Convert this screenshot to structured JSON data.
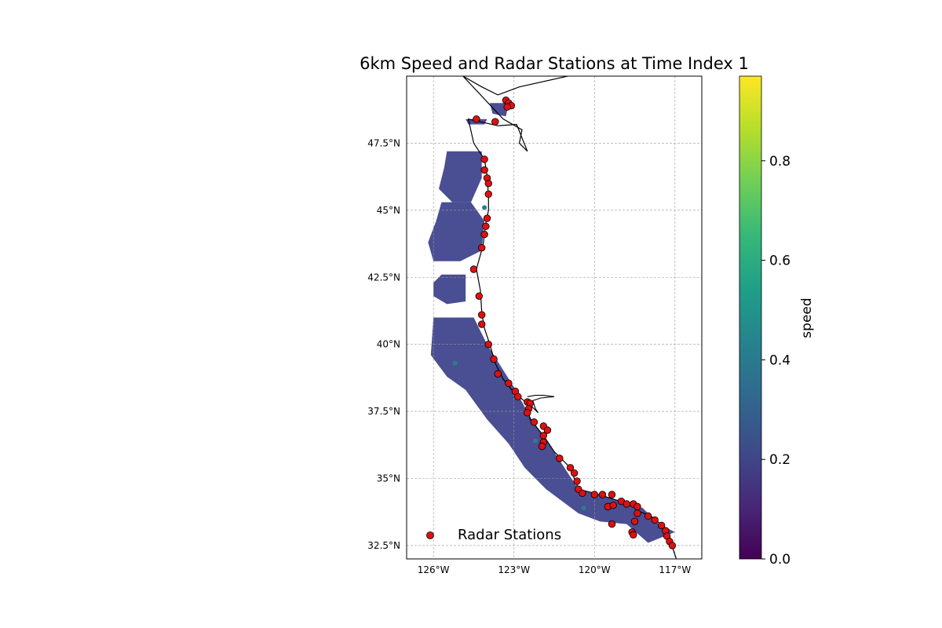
{
  "title": "6km Speed and Radar Stations at Time Index 1",
  "map": {
    "extent": {
      "lon": [
        -127.0,
        -116.0
      ],
      "lat": [
        32.0,
        50.0
      ]
    },
    "lat_ticks": [
      {
        "value": 32.5,
        "label": "32.5°N"
      },
      {
        "value": 35.0,
        "label": "35°N"
      },
      {
        "value": 37.5,
        "label": "37.5°N"
      },
      {
        "value": 40.0,
        "label": "40°N"
      },
      {
        "value": 42.5,
        "label": "42.5°N"
      },
      {
        "value": 45.0,
        "label": "45°N"
      },
      {
        "value": 47.5,
        "label": "47.5°N"
      }
    ],
    "lon_ticks": [
      {
        "value": -126.0,
        "label": "126°W"
      },
      {
        "value": -123.0,
        "label": "123°W"
      },
      {
        "value": -120.0,
        "label": "120°W"
      },
      {
        "value": -117.0,
        "label": "117°W"
      }
    ],
    "gridlines": true,
    "coastline_color": "#000000",
    "speed_field_color": "#3b3f8a",
    "speed_highlight_color": "#2a7d8e",
    "coastline": [
      [
        -121.0,
        50.0
      ],
      [
        -122.8,
        49.6
      ],
      [
        -123.6,
        49.3
      ],
      [
        -124.2,
        49.6
      ],
      [
        -124.9,
        50.0
      ],
      [
        -123.4,
        48.4
      ],
      [
        -122.7,
        48.0
      ],
      [
        -122.8,
        47.5
      ],
      [
        -122.5,
        47.2
      ],
      [
        -122.9,
        48.2
      ],
      [
        -123.6,
        48.15
      ],
      [
        -124.7,
        48.4
      ],
      [
        -124.5,
        47.5
      ],
      [
        -124.1,
        46.9
      ],
      [
        -124.0,
        46.3
      ],
      [
        -123.95,
        45.5
      ],
      [
        -123.95,
        45.0
      ],
      [
        -124.05,
        44.5
      ],
      [
        -124.15,
        43.7
      ],
      [
        -124.4,
        42.8
      ],
      [
        -124.25,
        42.0
      ],
      [
        -124.2,
        41.2
      ],
      [
        -124.1,
        40.6
      ],
      [
        -123.9,
        40.0
      ],
      [
        -123.7,
        39.3
      ],
      [
        -123.4,
        38.7
      ],
      [
        -123.0,
        38.2
      ],
      [
        -122.5,
        37.8
      ],
      [
        -122.4,
        37.2
      ],
      [
        -121.9,
        36.6
      ],
      [
        -121.5,
        36.0
      ],
      [
        -120.9,
        35.4
      ],
      [
        -120.6,
        34.6
      ],
      [
        -120.0,
        34.45
      ],
      [
        -119.2,
        34.2
      ],
      [
        -118.5,
        34.0
      ],
      [
        -118.4,
        33.8
      ],
      [
        -117.9,
        33.6
      ],
      [
        -117.3,
        33.1
      ],
      [
        -117.15,
        32.7
      ],
      [
        -117.1,
        32.45
      ],
      [
        -116.95,
        32.0
      ]
    ],
    "bay": [
      [
        -122.5,
        38.05
      ],
      [
        -122.2,
        38.1
      ],
      [
        -121.9,
        38.1
      ],
      [
        -121.5,
        38.05
      ],
      [
        -122.0,
        38.0
      ],
      [
        -122.3,
        37.9
      ],
      [
        -122.2,
        37.6
      ],
      [
        -122.1,
        37.45
      ],
      [
        -122.4,
        37.75
      ]
    ]
  },
  "speed_field": [
    [
      [
        -125.5,
        47.2
      ],
      [
        -124.2,
        47.2
      ],
      [
        -124.2,
        46.2
      ],
      [
        -124.6,
        45.3
      ],
      [
        -125.3,
        45.3
      ],
      [
        -125.8,
        45.8
      ],
      [
        -125.6,
        46.6
      ]
    ],
    [
      [
        -125.7,
        45.3
      ],
      [
        -124.6,
        45.3
      ],
      [
        -124.1,
        44.6
      ],
      [
        -124.2,
        43.5
      ],
      [
        -125.0,
        43.1
      ],
      [
        -126.0,
        43.1
      ],
      [
        -126.2,
        43.8
      ],
      [
        -125.9,
        44.6
      ]
    ],
    [
      [
        -125.7,
        42.6
      ],
      [
        -124.8,
        42.6
      ],
      [
        -124.8,
        41.6
      ],
      [
        -125.5,
        41.5
      ],
      [
        -126.0,
        41.8
      ],
      [
        -126.0,
        42.3
      ]
    ],
    [
      [
        -126.0,
        41.0
      ],
      [
        -124.5,
        41.0
      ],
      [
        -124.0,
        40.0
      ],
      [
        -123.0,
        38.4
      ],
      [
        -122.4,
        37.3
      ],
      [
        -121.7,
        36.3
      ],
      [
        -120.6,
        34.6
      ],
      [
        -119.2,
        34.2
      ],
      [
        -118.2,
        33.9
      ],
      [
        -117.6,
        33.3
      ],
      [
        -117.0,
        33.0
      ],
      [
        -118.0,
        32.6
      ],
      [
        -118.8,
        33.3
      ],
      [
        -119.8,
        33.4
      ],
      [
        -120.6,
        33.7
      ],
      [
        -121.8,
        34.6
      ],
      [
        -122.6,
        35.4
      ],
      [
        -123.2,
        36.3
      ],
      [
        -124.0,
        37.2
      ],
      [
        -124.8,
        38.3
      ],
      [
        -125.5,
        38.8
      ],
      [
        -126.1,
        39.6
      ]
    ],
    [
      [
        -123.9,
        49.0
      ],
      [
        -123.2,
        49.0
      ],
      [
        -123.3,
        48.5
      ],
      [
        -123.8,
        48.6
      ]
    ],
    [
      [
        -124.8,
        48.4
      ],
      [
        -124.0,
        48.4
      ],
      [
        -124.1,
        48.2
      ],
      [
        -124.7,
        48.2
      ]
    ]
  ],
  "stations": {
    "legend_label": "Radar Stations",
    "legend_location": "lower-left",
    "marker_color": "#dd1111",
    "points": [
      [
        -123.3,
        49.1
      ],
      [
        -123.2,
        49.0
      ],
      [
        -123.1,
        48.9
      ],
      [
        -123.25,
        48.85
      ],
      [
        -124.4,
        48.4
      ],
      [
        -123.7,
        48.3
      ],
      [
        -124.1,
        46.9
      ],
      [
        -124.1,
        46.5
      ],
      [
        -124.0,
        46.2
      ],
      [
        -123.95,
        46.0
      ],
      [
        -123.95,
        45.6
      ],
      [
        -124.0,
        44.7
      ],
      [
        -124.05,
        44.4
      ],
      [
        -124.1,
        44.1
      ],
      [
        -124.2,
        43.6
      ],
      [
        -124.5,
        42.8
      ],
      [
        -124.3,
        41.8
      ],
      [
        -124.2,
        41.1
      ],
      [
        -124.2,
        40.75
      ],
      [
        -123.95,
        40.0
      ],
      [
        -123.75,
        39.45
      ],
      [
        -123.6,
        38.9
      ],
      [
        -123.2,
        38.55
      ],
      [
        -122.95,
        38.25
      ],
      [
        -122.85,
        38.05
      ],
      [
        -122.5,
        37.85
      ],
      [
        -122.4,
        37.8
      ],
      [
        -122.45,
        37.6
      ],
      [
        -122.5,
        37.45
      ],
      [
        -122.25,
        37.1
      ],
      [
        -121.9,
        36.95
      ],
      [
        -121.75,
        36.8
      ],
      [
        -121.9,
        36.6
      ],
      [
        -121.9,
        36.35
      ],
      [
        -121.95,
        36.2
      ],
      [
        -121.3,
        35.75
      ],
      [
        -120.9,
        35.4
      ],
      [
        -120.75,
        35.2
      ],
      [
        -120.65,
        34.9
      ],
      [
        -120.6,
        34.6
      ],
      [
        -120.45,
        34.45
      ],
      [
        -120.0,
        34.4
      ],
      [
        -119.7,
        34.4
      ],
      [
        -119.35,
        34.4
      ],
      [
        -119.0,
        34.15
      ],
      [
        -118.8,
        34.05
      ],
      [
        -118.55,
        34.05
      ],
      [
        -118.4,
        33.95
      ],
      [
        -118.4,
        33.7
      ],
      [
        -118.0,
        33.6
      ],
      [
        -117.75,
        33.45
      ],
      [
        -117.5,
        33.25
      ],
      [
        -117.35,
        33.05
      ],
      [
        -117.3,
        32.85
      ],
      [
        -117.2,
        32.65
      ],
      [
        -117.1,
        32.5
      ],
      [
        -119.35,
        33.3
      ],
      [
        -118.5,
        33.4
      ],
      [
        -119.5,
        33.95
      ],
      [
        -119.3,
        34.0
      ],
      [
        -118.6,
        33.0
      ],
      [
        -118.55,
        32.9
      ]
    ]
  },
  "colorbar": {
    "label": "speed",
    "min": 0.0,
    "max": 0.97,
    "ticks": [
      {
        "value": 0.0,
        "label": "0.0"
      },
      {
        "value": 0.2,
        "label": "0.2"
      },
      {
        "value": 0.4,
        "label": "0.4"
      },
      {
        "value": 0.6,
        "label": "0.6"
      },
      {
        "value": 0.8,
        "label": "0.8"
      }
    ],
    "colors": [
      "#440154",
      "#482878",
      "#3e4a89",
      "#31688e",
      "#26828e",
      "#1f9e89",
      "#35b779",
      "#6ece58",
      "#b5de2b",
      "#fde725"
    ]
  }
}
